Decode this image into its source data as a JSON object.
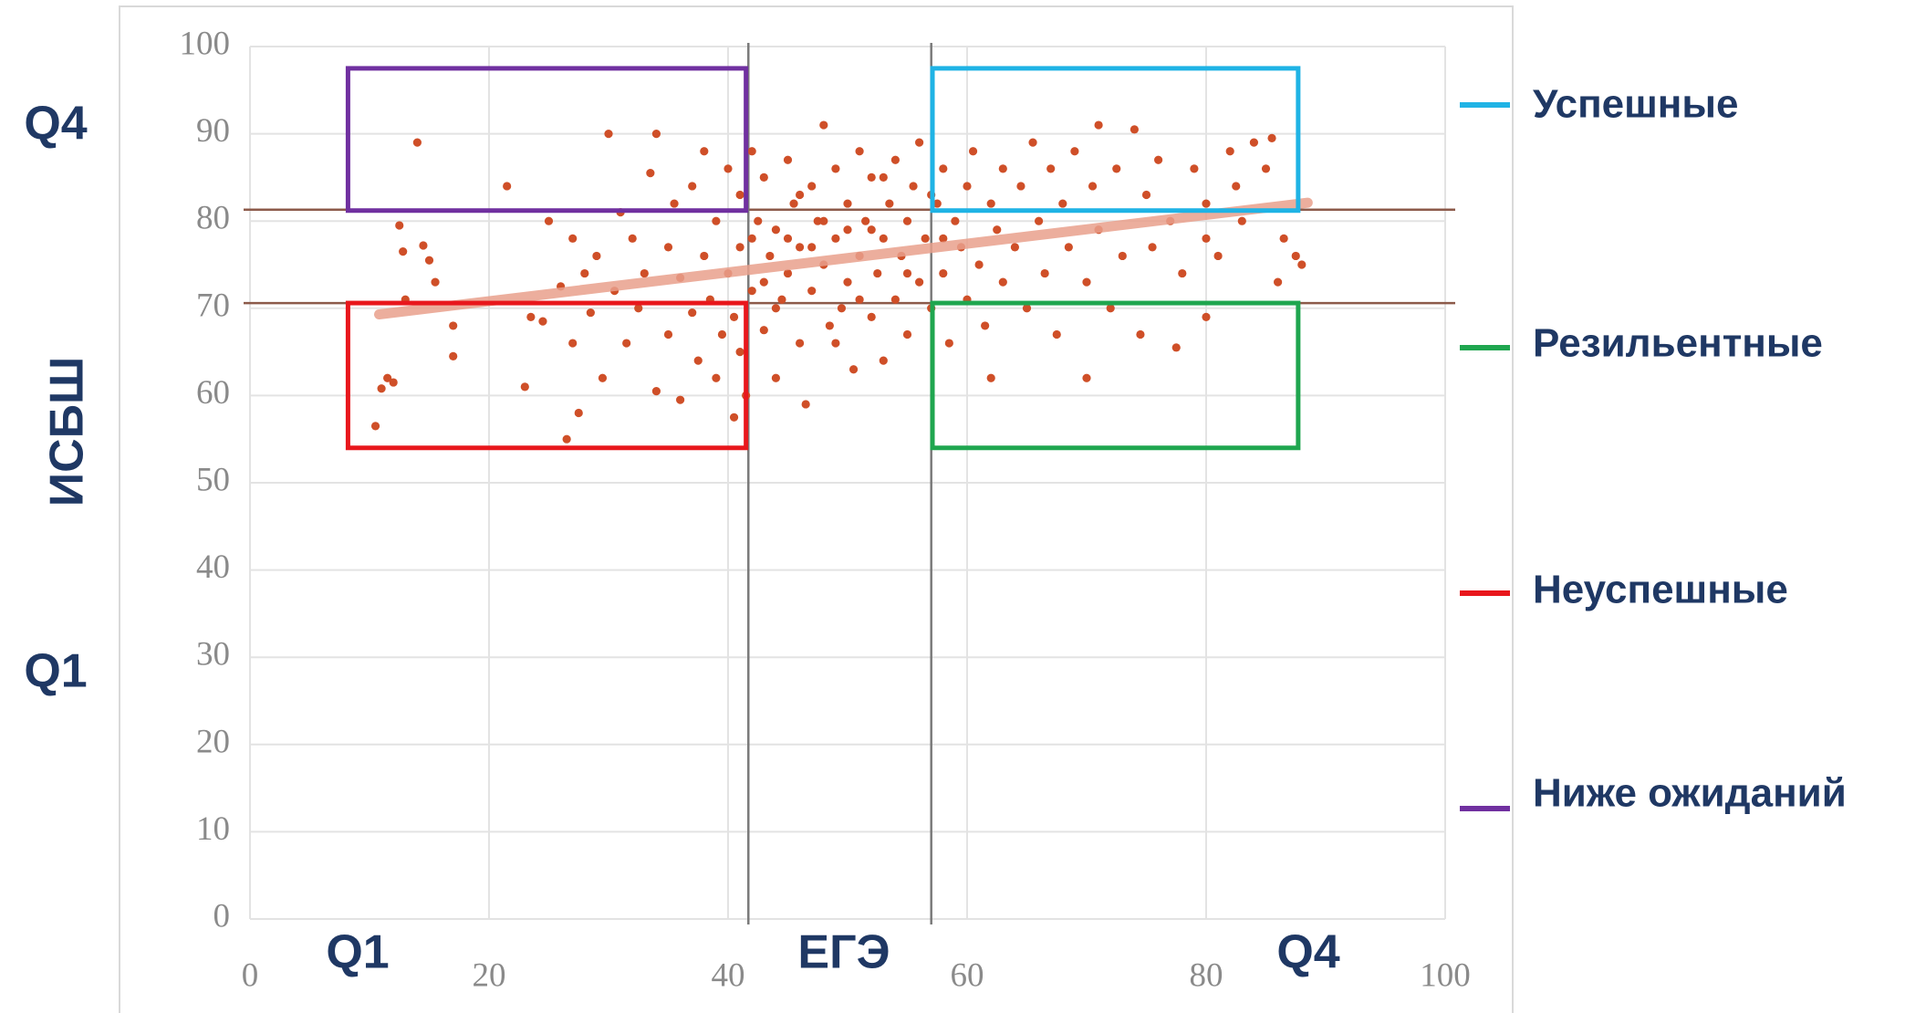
{
  "chart_data": {
    "type": "scatter",
    "xlabel": "ЕГЭ",
    "ylabel": "ИСБШ",
    "x_quartile_labels": [
      "Q1",
      "Q4"
    ],
    "y_quartile_labels": [
      "Q4",
      "Q1"
    ],
    "xlim": [
      0,
      100
    ],
    "ylim": [
      0,
      100
    ],
    "xticks": [
      0,
      20,
      40,
      60,
      80,
      100
    ],
    "yticks": [
      0,
      10,
      20,
      30,
      40,
      50,
      60,
      70,
      80,
      90,
      100
    ],
    "grid": true,
    "color": "#cf4f28",
    "x": [
      12.5,
      12.8,
      14,
      14.5,
      15,
      13,
      15.5,
      17,
      17,
      11.5,
      11,
      12,
      10.5,
      21.5,
      23,
      23.5,
      24.5,
      25,
      26,
      26.5,
      27,
      27.5,
      27,
      28,
      28.5,
      29,
      29.5,
      30,
      30.5,
      31,
      31.5,
      32,
      32.5,
      33,
      33.5,
      34,
      34,
      35,
      35,
      35.5,
      36,
      36,
      37,
      37,
      37.5,
      38,
      38,
      38.5,
      39,
      39,
      39.5,
      40,
      40,
      40.5,
      40.5,
      41,
      41,
      41,
      41.5,
      42,
      42,
      42.5,
      43,
      43,
      43.5,
      44,
      44,
      44.5,
      45,
      45,
      45.5,
      46,
      46,
      46.5,
      47,
      47,
      47.5,
      48,
      48,
      48.5,
      49,
      49,
      49.5,
      50,
      50,
      50.5,
      51,
      51,
      51.5,
      52,
      52,
      52.5,
      53,
      53,
      53.5,
      54,
      54,
      54.5,
      55,
      55,
      55.5,
      56,
      56,
      56.5,
      57,
      57.5,
      58,
      58,
      58.5,
      59,
      59.5,
      60,
      60,
      60.5,
      61,
      61.5,
      62,
      62,
      62.5,
      63,
      63,
      64,
      64.5,
      65,
      65.5,
      66,
      66.5,
      67,
      67.5,
      68,
      68.5,
      69,
      70,
      70,
      70.5,
      71,
      71,
      72,
      72.5,
      73,
      74,
      74.5,
      75,
      75.5,
      76,
      77,
      77.5,
      78,
      79,
      80,
      80,
      80,
      81,
      82,
      82.5,
      83,
      84,
      85,
      86,
      86.5,
      87.5,
      88,
      85.5,
      57,
      50,
      45,
      47,
      52,
      48,
      43,
      55,
      51,
      46,
      44,
      49,
      53,
      42,
      58
    ],
    "values": [
      79.5,
      76.5,
      89,
      77.2,
      75.5,
      71,
      73,
      68,
      64.5,
      62,
      60.8,
      61.5,
      56.5,
      84,
      61,
      69,
      68.5,
      80,
      72.5,
      55,
      78,
      58,
      66,
      74,
      69.5,
      76,
      62,
      90,
      72,
      81,
      66,
      78,
      70,
      74,
      85.5,
      60.5,
      90,
      67,
      77,
      82,
      59.5,
      73.5,
      84,
      69.5,
      64,
      88,
      76,
      71,
      62,
      80,
      67,
      86,
      74,
      57.5,
      69,
      83,
      77,
      65,
      60,
      88,
      72,
      80,
      67.5,
      85,
      76,
      62,
      79,
      71,
      87,
      74,
      82,
      66,
      77,
      59,
      84,
      72,
      80,
      91,
      75,
      68,
      86,
      78,
      70,
      82,
      73,
      63,
      88,
      76,
      80,
      69,
      85,
      74,
      78,
      64,
      82,
      87,
      71,
      76,
      80,
      67,
      84,
      73,
      89,
      78,
      70,
      82,
      86,
      74,
      66,
      80,
      77,
      84,
      71,
      88,
      75,
      68,
      82,
      62,
      79,
      86,
      73,
      77,
      84,
      70,
      89,
      80,
      74,
      86,
      67,
      82,
      77,
      88,
      73,
      62,
      84,
      91,
      79,
      70,
      86,
      76,
      90.5,
      67,
      83,
      77,
      87,
      80,
      65.5,
      74,
      86,
      78,
      69,
      82,
      76,
      88,
      84,
      80,
      89,
      86,
      73,
      78,
      76,
      75,
      89.5,
      83,
      79,
      78,
      77,
      79,
      80,
      73,
      74,
      71,
      83,
      70,
      66,
      85,
      78,
      78
    ],
    "trend": {
      "color": "#e9a08c",
      "x": [
        10.8,
        88.5
      ],
      "y": [
        69.3,
        82.1
      ]
    },
    "hlines": {
      "color": "#8c5a4a",
      "values": [
        81.3,
        70.6
      ]
    },
    "vlines": {
      "color": "#7a7a7a",
      "values": [
        41.7,
        57
      ]
    },
    "regions": [
      {
        "name": "Успешные",
        "color": "#1fb3e5",
        "x": [
          57.1,
          87.7
        ],
        "y": [
          81.2,
          97.5
        ]
      },
      {
        "name": "Резильентные",
        "color": "#1fa64f",
        "x": [
          57.1,
          87.7
        ],
        "y": [
          54,
          70.6
        ]
      },
      {
        "name": "Неуспешные",
        "color": "#e8171c",
        "x": [
          8.2,
          41.5
        ],
        "y": [
          54,
          70.6
        ]
      },
      {
        "name": "Ниже ожиданий",
        "color": "#7030a0",
        "x": [
          8.2,
          41.5
        ],
        "y": [
          81.2,
          97.5
        ]
      }
    ]
  }
}
